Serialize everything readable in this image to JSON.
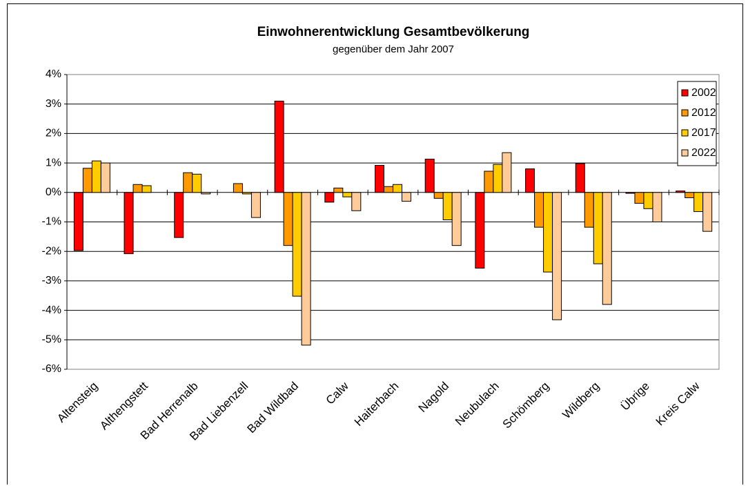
{
  "chart_data": {
    "type": "bar",
    "title": "Einwohnerentwicklung Gesamtbevölkerung",
    "subtitle": "gegenüber dem Jahr 2007",
    "categories": [
      "Altensteig",
      "Althengstett",
      "Bad Herrenalb",
      "Bad Liebenzell",
      "Bad Wildbad",
      "Calw",
      "Haiterbach",
      "Nagold",
      "Neubulach",
      "Schömberg",
      "Wildberg",
      "Übrige",
      "Kreis Calw"
    ],
    "series": [
      {
        "name": "2002",
        "color": "#ff0000",
        "values": [
          -1.97,
          -2.08,
          -1.53,
          0,
          3.1,
          -0.33,
          0.92,
          1.13,
          -2.57,
          0.8,
          0.98,
          -0.03,
          0.05
        ]
      },
      {
        "name": "2012",
        "color": "#ff9900",
        "values": [
          0.82,
          0.27,
          0.67,
          0.3,
          -1.8,
          0.15,
          0.2,
          -0.2,
          0.72,
          -1.18,
          -1.18,
          -0.37,
          -0.18
        ]
      },
      {
        "name": "2017",
        "color": "#ffcc00",
        "values": [
          1.07,
          0.23,
          0.62,
          -0.05,
          -3.52,
          -0.15,
          0.27,
          -0.93,
          0.95,
          -2.7,
          -2.42,
          -0.55,
          -0.65
        ]
      },
      {
        "name": "2022",
        "color": "#ffcc99",
        "values": [
          1.0,
          0,
          -0.05,
          -0.85,
          -5.18,
          -0.62,
          -0.3,
          -1.8,
          1.35,
          -4.32,
          -3.8,
          -1.0,
          -1.32
        ]
      }
    ],
    "ylim": [
      -6,
      4
    ],
    "yticks": [
      {
        "value": -6,
        "label": "-6%"
      },
      {
        "value": -5,
        "label": "-5%"
      },
      {
        "value": -4,
        "label": "-4%"
      },
      {
        "value": -3,
        "label": "-3%"
      },
      {
        "value": -2,
        "label": "-2%"
      },
      {
        "value": -1,
        "label": "-1%"
      },
      {
        "value": 0,
        "label": "0%"
      },
      {
        "value": 1,
        "label": "1%"
      },
      {
        "value": 2,
        "label": "2%"
      },
      {
        "value": 3,
        "label": "3%"
      },
      {
        "value": 4,
        "label": "4%"
      }
    ],
    "grid": true,
    "legend": "top-right"
  }
}
